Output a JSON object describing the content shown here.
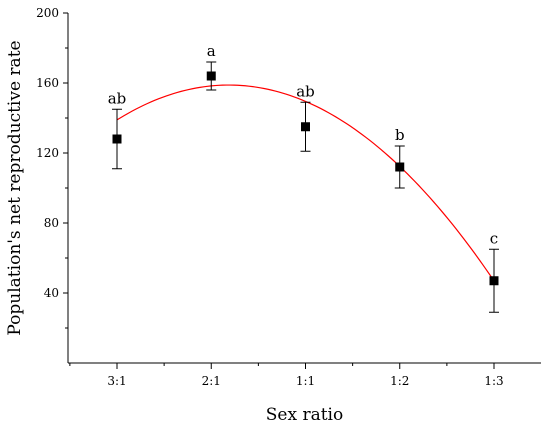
{
  "chart_data": {
    "type": "scatter",
    "xlabel": "Sex ratio",
    "ylabel": "Population's net reproductive rate",
    "categories": [
      "3:1",
      "2:1",
      "1:1",
      "1:2",
      "1:3"
    ],
    "ylim": [
      0,
      200
    ],
    "yticks": [
      40,
      80,
      120,
      160,
      200
    ],
    "series": [
      {
        "values": [
          128,
          164,
          135,
          112,
          47
        ],
        "error": [
          17,
          8,
          14,
          12,
          18
        ],
        "labels": [
          "ab",
          "a",
          "ab",
          "b",
          "c"
        ]
      }
    ],
    "fit": {
      "kind": "quadratic",
      "points": [
        [
          1,
          139
        ],
        [
          2,
          158
        ],
        [
          3,
          150
        ],
        [
          4,
          112
        ],
        [
          5,
          47
        ]
      ]
    },
    "grid": false,
    "colors": {
      "marker": "#000000",
      "fit": "#ff0000",
      "axis": "#000000"
    }
  }
}
